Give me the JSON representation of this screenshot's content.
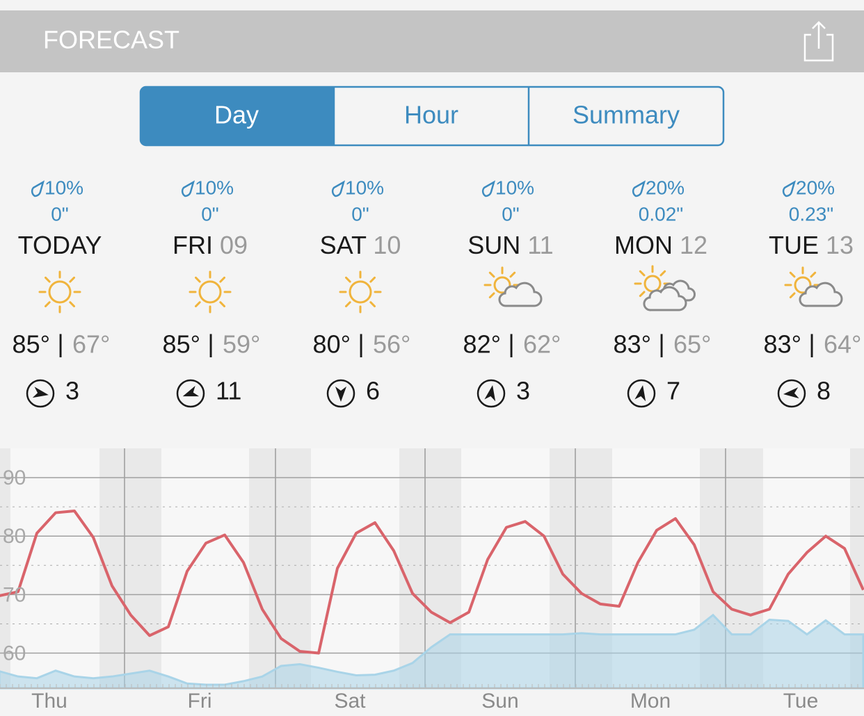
{
  "header": {
    "title": "FORECAST"
  },
  "tabs": [
    "Day",
    "Hour",
    "Summary"
  ],
  "temp_separator": "|",
  "days": [
    {
      "precip": "10%",
      "amount": "0\"",
      "name": "TODAY",
      "high": "85°",
      "low": "67°",
      "wind": "3"
    },
    {
      "precip": "10%",
      "amount": "0\"",
      "name": "FRI",
      "date": "09",
      "high": "85°",
      "low": "59°",
      "wind": "11"
    },
    {
      "precip": "10%",
      "amount": "0\"",
      "name": "SAT",
      "date": "10",
      "high": "80°",
      "low": "56°",
      "wind": "6"
    },
    {
      "precip": "10%",
      "amount": "0\"",
      "name": "SUN",
      "date": "11",
      "high": "82°",
      "low": "62°",
      "wind": "3"
    },
    {
      "precip": "20%",
      "amount": "0.02\"",
      "name": "MON",
      "date": "12",
      "high": "83°",
      "low": "65°",
      "wind": "7"
    },
    {
      "precip": "20%",
      "amount": "0.23\"",
      "name": "TUE",
      "date": "13",
      "high": "83°",
      "low": "64°",
      "wind": "8"
    }
  ],
  "chart": {
    "type": "line",
    "categories": [
      "Thu",
      "Fri",
      "Sat",
      "Sun",
      "Mon",
      "Tue"
    ],
    "series": [
      {
        "color": "#d9646b",
        "values": [
          69.8,
          70.5,
          80.5,
          84,
          84.3,
          79.8,
          71.5,
          66.5,
          63,
          64.5,
          74,
          78.8,
          80.2,
          75.5,
          67.5,
          62.5,
          60.3,
          60,
          74.5,
          80.5,
          82.3,
          77.5,
          70.2,
          67,
          65.2,
          67,
          76,
          81.5,
          82.5,
          80,
          73.5,
          70.2,
          68.4,
          68,
          75.5,
          81,
          83,
          78.5,
          70.5,
          67.5,
          66.5,
          67.5,
          73.5,
          77.2,
          80,
          77.9,
          70.8
        ]
      },
      {
        "color": "#a9d4e8",
        "fill": true,
        "values": [
          56.9,
          56,
          55.7,
          57,
          56,
          55.7,
          56,
          56.5,
          57,
          56,
          54.8,
          54.6,
          54.6,
          55.2,
          56,
          57.8,
          58.1,
          57.5,
          56.8,
          56.2,
          56.3,
          57,
          58.3,
          61,
          63.2,
          63.2,
          63.2,
          63.2,
          63.2,
          63.2,
          63.2,
          63.4,
          63.2,
          63.2,
          63.2,
          63.2,
          63.2,
          64,
          66.5,
          63.2,
          63.2,
          65.7,
          65.5,
          63.2,
          65.6,
          63.2,
          63.2
        ]
      }
    ],
    "ylim": [
      54,
      95
    ],
    "yticks": [
      60,
      70,
      80,
      90
    ],
    "grid": true
  }
}
